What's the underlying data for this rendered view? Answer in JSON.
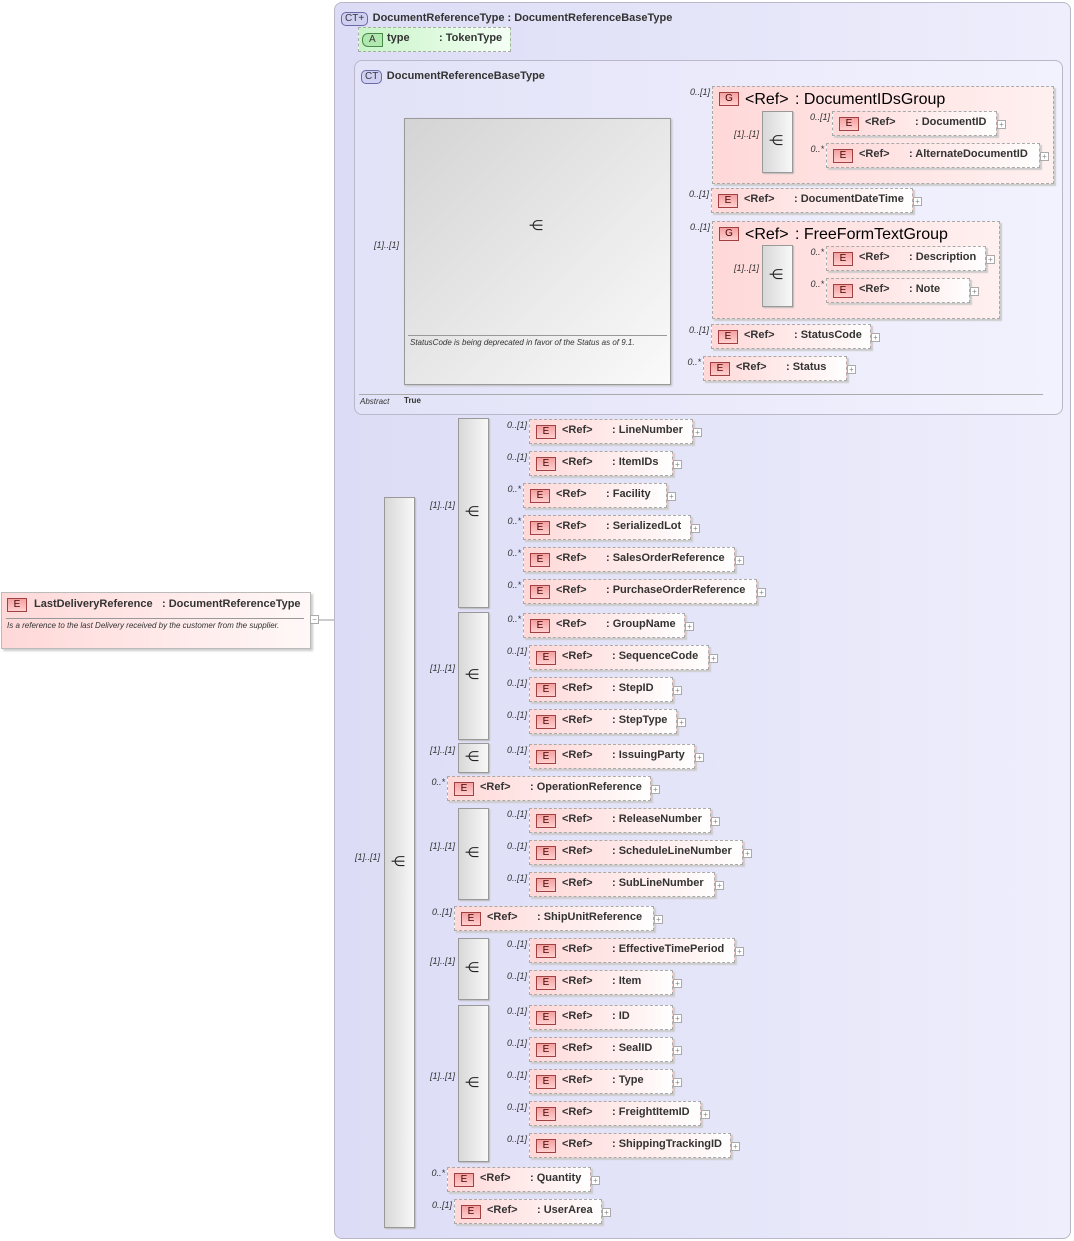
{
  "root": {
    "badge": "E",
    "name": "LastDeliveryReference",
    "type": ": DocumentReferenceType",
    "doc": "Is a reference to the last Delivery  received by the customer from the supplier.",
    "collapse": "−"
  },
  "complex_type": {
    "badge": "CT+",
    "title": "DocumentReferenceType : DocumentReferenceBaseType",
    "attribute": {
      "badge": "A",
      "name": "type",
      "type": ": TokenType"
    },
    "base_type": {
      "badge": "CT",
      "title": "DocumentReferenceBaseType",
      "abstract_label": "Abstract",
      "abstract_value": "True",
      "note": "StatusCode is being deprecated in favor of the Status as of 9.1.",
      "card": "[1]..[1]"
    }
  },
  "sequence_card": "[1]..[1]",
  "sequence_icon": "sequence-icon",
  "colors": {
    "element": "#ffd8d8",
    "complex_type": "#dcdcf6",
    "attribute": "#d8f8d8"
  },
  "top_items": [
    {
      "kind": "G",
      "ref": "<Ref>",
      "name": ": DocumentIDsGroup",
      "card": "0..[1]",
      "seq_card": "[1]..[1]",
      "kids": [
        {
          "ref": "<Ref>",
          "name": ": DocumentID",
          "card": "0..[1]"
        },
        {
          "ref": "<Ref>",
          "name": ": AlternateDocumentID",
          "card": "0..*"
        }
      ]
    },
    {
      "kind": "E",
      "ref": "<Ref>",
      "name": ": DocumentDateTime",
      "card": "0..[1]"
    },
    {
      "kind": "G",
      "ref": "<Ref>",
      "name": ": FreeFormTextGroup",
      "card": "0..[1]",
      "seq_card": "[1]..[1]",
      "kids": [
        {
          "ref": "<Ref>",
          "name": ": Description",
          "card": "0..*"
        },
        {
          "ref": "<Ref>",
          "name": ": Note",
          "card": "0..*"
        }
      ]
    },
    {
      "kind": "E",
      "ref": "<Ref>",
      "name": ": StatusCode",
      "card": "0..[1]"
    },
    {
      "kind": "E",
      "ref": "<Ref>",
      "name": ": Status",
      "card": "0..*"
    }
  ],
  "bottom_items": [
    {
      "kind": "S",
      "card": "[1]..[1]",
      "kids": [
        {
          "ref": "<Ref>",
          "name": ": LineNumber",
          "card": "0..[1]"
        },
        {
          "ref": "<Ref>",
          "name": ": ItemIDs",
          "card": "0..[1]"
        },
        {
          "ref": "<Ref>",
          "name": ": Facility",
          "card": "0..*"
        },
        {
          "ref": "<Ref>",
          "name": ": SerializedLot",
          "card": "0..*"
        },
        {
          "ref": "<Ref>",
          "name": ": SalesOrderReference",
          "card": "0..*"
        },
        {
          "ref": "<Ref>",
          "name": ": PurchaseOrderReference",
          "card": "0..*"
        }
      ]
    },
    {
      "kind": "S",
      "card": "[1]..[1]",
      "kids": [
        {
          "ref": "<Ref>",
          "name": ": GroupName",
          "card": "0..*"
        },
        {
          "ref": "<Ref>",
          "name": ": SequenceCode",
          "card": "0..[1]"
        },
        {
          "ref": "<Ref>",
          "name": ": StepID",
          "card": "0..[1]"
        },
        {
          "ref": "<Ref>",
          "name": ": StepType",
          "card": "0..[1]"
        }
      ]
    },
    {
      "kind": "S",
      "card": "[1]..[1]",
      "kids": [
        {
          "ref": "<Ref>",
          "name": ": IssuingParty",
          "card": "0..[1]"
        }
      ]
    },
    {
      "kind": "E",
      "ref": "<Ref>",
      "name": ": OperationReference",
      "card": "0..*"
    },
    {
      "kind": "S",
      "card": "[1]..[1]",
      "kids": [
        {
          "ref": "<Ref>",
          "name": ": ReleaseNumber",
          "card": "0..[1]"
        },
        {
          "ref": "<Ref>",
          "name": ": ScheduleLineNumber",
          "card": "0..[1]"
        },
        {
          "ref": "<Ref>",
          "name": ": SubLineNumber",
          "card": "0..[1]"
        }
      ]
    },
    {
      "kind": "E",
      "ref": "<Ref>",
      "name": ": ShipUnitReference",
      "card": "0..[1]"
    },
    {
      "kind": "S",
      "card": "[1]..[1]",
      "kids": [
        {
          "ref": "<Ref>",
          "name": ": EffectiveTimePeriod",
          "card": "0..[1]"
        },
        {
          "ref": "<Ref>",
          "name": ": Item",
          "card": "0..[1]"
        }
      ]
    },
    {
      "kind": "S",
      "card": "[1]..[1]",
      "kids": [
        {
          "ref": "<Ref>",
          "name": ": ID",
          "card": "0..[1]"
        },
        {
          "ref": "<Ref>",
          "name": ": SealID",
          "card": "0..[1]"
        },
        {
          "ref": "<Ref>",
          "name": ": Type",
          "card": "0..[1]"
        },
        {
          "ref": "<Ref>",
          "name": ": FreightItemID",
          "card": "0..[1]"
        },
        {
          "ref": "<Ref>",
          "name": ": ShippingTrackingID",
          "card": "0..[1]"
        }
      ]
    },
    {
      "kind": "E",
      "ref": "<Ref>",
      "name": ": Quantity",
      "card": "0..*"
    },
    {
      "kind": "E",
      "ref": "<Ref>",
      "name": ": UserArea",
      "card": "0..[1]"
    }
  ]
}
